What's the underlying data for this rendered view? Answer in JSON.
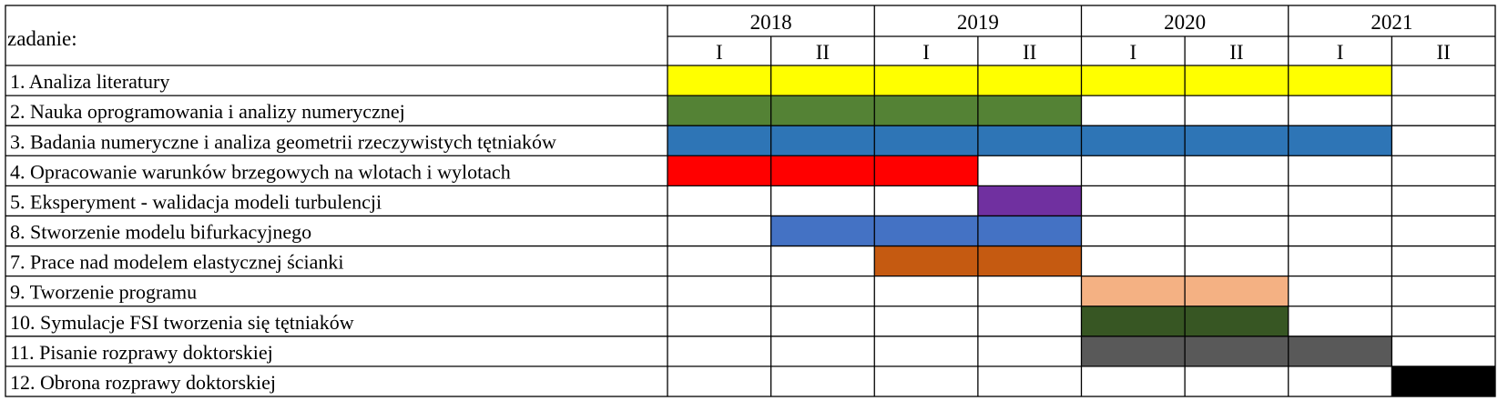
{
  "header": {
    "task_column_label": "zadanie:"
  },
  "chart_data": {
    "type": "gantt",
    "years": [
      "2018",
      "2019",
      "2020",
      "2021"
    ],
    "halves": [
      "I",
      "II"
    ],
    "periods": [
      "2018-I",
      "2018-II",
      "2019-I",
      "2019-II",
      "2020-I",
      "2020-II",
      "2021-I",
      "2021-II"
    ],
    "tasks": [
      {
        "label": "1. Analiza literatury",
        "start": "2018-I",
        "end": "2021-I",
        "color": "#ffff00"
      },
      {
        "label": "2. Nauka oprogramowania i analizy numerycznej",
        "start": "2018-I",
        "end": "2019-II",
        "color": "#548235"
      },
      {
        "label": "3. Badania numeryczne i analiza geometrii rzeczywistych tętniaków",
        "start": "2018-I",
        "end": "2021-I",
        "color": "#2e75b6"
      },
      {
        "label": "4. Opracowanie warunków brzegowych na wlotach i wylotach",
        "start": "2018-I",
        "end": "2019-I",
        "color": "#ff0000"
      },
      {
        "label": "5. Eksperyment - walidacja modeli turbulencji",
        "start": "2019-II",
        "end": "2019-II",
        "color": "#7030a0"
      },
      {
        "label": "8. Stworzenie modelu bifurkacyjnego",
        "start": "2018-II",
        "end": "2019-II",
        "color": "#4472c4"
      },
      {
        "label": "7. Prace nad modelem elastycznej ścianki",
        "start": "2019-I",
        "end": "2019-II",
        "color": "#c55a11"
      },
      {
        "label": "9. Tworzenie programu",
        "start": "2020-I",
        "end": "2020-II",
        "color": "#f4b183"
      },
      {
        "label": "10. Symulacje FSI tworzenia się tętniaków",
        "start": "2020-I",
        "end": "2020-II",
        "color": "#375623"
      },
      {
        "label": "11. Pisanie rozprawy doktorskiej",
        "start": "2020-I",
        "end": "2021-I",
        "color": "#595959"
      },
      {
        "label": "12. Obrona rozprawy doktorskiej",
        "start": "2021-II",
        "end": "2021-II",
        "color": "#000000"
      }
    ]
  }
}
